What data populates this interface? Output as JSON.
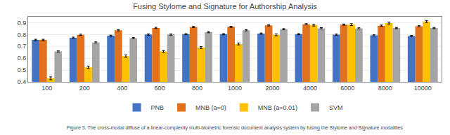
{
  "chart_data": {
    "type": "bar",
    "title": "Fusing Stylome and Signature for Authorship Analysis",
    "annotations": [
      "Figure 3. The cross-modal diffuse of a linear-complexity multi-biometric forensic document analysis system by fusing the Stylome and Signature modalities"
    ],
    "categories": [
      "100",
      "200",
      "400",
      "600",
      "800",
      "1000",
      "2000",
      "4000",
      "6000",
      "8000",
      "10000"
    ],
    "series": [
      {
        "name": "PNB",
        "color": "#4472C4",
        "values": [
          0.755,
          0.773,
          0.79,
          0.8,
          0.803,
          0.803,
          0.808,
          0.803,
          0.799,
          0.793,
          0.788
        ],
        "errors": [
          0.005,
          0.005,
          0.005,
          0.005,
          0.005,
          0.005,
          0.005,
          0.005,
          0.005,
          0.005,
          0.005
        ]
      },
      {
        "name": "MNB (a=0)",
        "color": "#E2711D",
        "values": [
          0.755,
          0.798,
          0.836,
          0.856,
          0.864,
          0.865,
          0.878,
          0.887,
          0.884,
          0.875,
          0.87
        ],
        "errors": [
          0.005,
          0.005,
          0.005,
          0.005,
          0.005,
          0.005,
          0.005,
          0.005,
          0.005,
          0.005,
          0.005
        ]
      },
      {
        "name": "MNB (a=0.01)",
        "color": "#FFC000",
        "values": [
          0.43,
          0.523,
          0.618,
          0.657,
          0.69,
          0.72,
          0.797,
          0.88,
          0.884,
          0.897,
          0.91
        ],
        "errors": [
          0.012,
          0.01,
          0.01,
          0.008,
          0.008,
          0.008,
          0.008,
          0.008,
          0.008,
          0.008,
          0.008
        ]
      },
      {
        "name": "SVM",
        "color": "#A5A5A5",
        "values": [
          0.657,
          0.733,
          0.77,
          0.8,
          0.82,
          0.836,
          0.845,
          0.853,
          0.852,
          0.855,
          0.855
        ],
        "errors": [
          0.005,
          0.005,
          0.005,
          0.005,
          0.005,
          0.005,
          0.005,
          0.005,
          0.005,
          0.005,
          0.005
        ]
      }
    ],
    "ylim": [
      0.4,
      0.95
    ],
    "yticks": [
      0.4,
      0.5,
      0.6,
      0.7,
      0.8,
      0.9
    ],
    "grid": true,
    "legend": "bottom"
  }
}
